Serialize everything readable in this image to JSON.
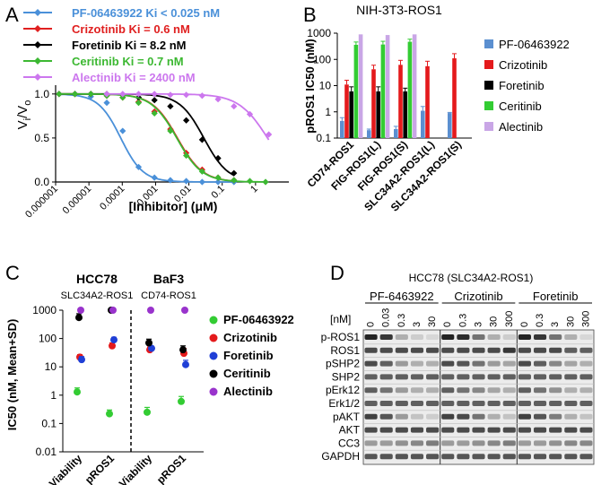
{
  "panels": {
    "A": "A",
    "B": "B",
    "C": "C",
    "D": "D"
  },
  "chart_data": [
    {
      "panel": "A",
      "type": "line",
      "xlabel_prefix": "[Inhibitor] (",
      "xlabel_mu": "μ",
      "xlabel_suffix": "M)",
      "ylabel_main": "V",
      "ylabel_sub_i": "i",
      "ylabel_slash": "/V",
      "ylabel_sub_o": "o",
      "x_scale": "log",
      "xlim": [
        1e-06,
        10
      ],
      "ylim": [
        0,
        1.1
      ],
      "x_ticks": [
        1e-06,
        1e-05,
        0.0001,
        0.001,
        0.01,
        0.1,
        1
      ],
      "x_tick_labels": [
        "0.000001",
        "0.00001",
        "0.0001",
        "0.001",
        "0.01",
        "0.1",
        "1"
      ],
      "y_ticks": [
        0,
        0.5,
        1.0
      ],
      "y_tick_labels": [
        "0.0",
        "0.5",
        "1.0"
      ],
      "legend_position": "top",
      "series": [
        {
          "name": "PF-06463922 Ki < 0.025 nM",
          "color": "#4a90d9",
          "marker": "diamond",
          "ic50": 9e-05,
          "hill": 1.3,
          "x": [
            1.27e-06,
            3.8e-06,
            1.14e-05,
            3.43e-05,
            0.000103,
            0.000309,
            0.000926,
            0.00278,
            0.00833,
            0.025,
            0.075,
            0.225
          ],
          "y": [
            1.0,
            1.0,
            0.97,
            0.9,
            0.58,
            0.17,
            0.05,
            0.02,
            0.01,
            0.0,
            0.0,
            0.0
          ]
        },
        {
          "name": "Crizotinib Ki = 0.6 nM",
          "color": "#e02020",
          "marker": "diamond",
          "ic50": 0.0045,
          "hill": 1.15,
          "x": [
            1.27e-06,
            3.8e-06,
            1.14e-05,
            3.43e-05,
            0.000103,
            0.000309,
            0.000926,
            0.00278,
            0.00833,
            0.025,
            0.075,
            0.225
          ],
          "y": [
            1.0,
            1.0,
            1.0,
            0.98,
            0.96,
            0.91,
            0.8,
            0.6,
            0.33,
            0.14,
            0.05,
            0.02
          ]
        },
        {
          "name": "Foretinib Ki = 8.2 nM",
          "color": "#000000",
          "marker": "diamond",
          "ic50": 0.028,
          "hill": 1.2,
          "x": [
            1.27e-06,
            3.8e-06,
            1.14e-05,
            3.43e-05,
            0.000103,
            0.000309,
            0.000926,
            0.00278,
            0.00833,
            0.025,
            0.075,
            0.225
          ],
          "y": [
            1.0,
            1.0,
            1.0,
            1.0,
            0.99,
            0.96,
            0.93,
            0.86,
            0.7,
            0.48,
            0.27,
            0.1
          ]
        },
        {
          "name": "Ceritinib Ki = 0.7 nM",
          "color": "#3cb832",
          "marker": "diamond",
          "ic50": 0.0043,
          "hill": 1.15,
          "x": [
            1.27e-06,
            3.8e-06,
            1.14e-05,
            3.43e-05,
            0.000103,
            0.000309,
            0.000926,
            0.00278,
            0.00833,
            0.025,
            0.075,
            0.225,
            0.675,
            2.0
          ],
          "y": [
            1.0,
            1.0,
            1.0,
            0.98,
            0.96,
            0.9,
            0.78,
            0.58,
            0.3,
            0.12,
            0.05,
            0.02,
            0.01,
            0.0
          ]
        },
        {
          "name": "Alectinib Ki = 2400 nM",
          "color": "#cc77ee",
          "marker": "diamond",
          "ic50": 2.3,
          "hill": 1.0,
          "x": [
            3.43e-05,
            0.000103,
            0.000309,
            0.000926,
            0.00278,
            0.00833,
            0.025,
            0.075,
            0.225,
            0.675,
            2.5
          ],
          "y": [
            1.0,
            1.0,
            1.0,
            1.0,
            0.99,
            0.99,
            0.98,
            0.94,
            0.86,
            0.77,
            0.54
          ]
        }
      ]
    },
    {
      "panel": "B",
      "type": "bar",
      "title": "NIH-3T3-ROS1",
      "ylabel": "pROS1 IC50 (nM)",
      "y_scale": "log",
      "ylim": [
        0.1,
        1000
      ],
      "y_ticks": [
        0.1,
        1,
        10,
        100,
        1000
      ],
      "y_tick_labels": [
        "0.1",
        "1",
        "10",
        "100",
        "1000"
      ],
      "categories": [
        "CD74-ROS1",
        "FIG-ROS1(L)",
        "FIG-ROS1(S)",
        "SLC34A2-ROS1(L)",
        "SLC34A2-ROS1(S)"
      ],
      "legend_position": "right",
      "series": [
        {
          "name": "PF-06463922",
          "color": "#5b8fd0",
          "values": [
            0.45,
            0.2,
            0.22,
            1.1,
            0.9
          ],
          "err": [
            0.15,
            0.02,
            0.06,
            0.5,
            0.05
          ]
        },
        {
          "name": "Crizotinib",
          "color": "#e41a1c",
          "values": [
            11,
            42,
            62,
            55,
            110
          ],
          "err": [
            5,
            18,
            30,
            30,
            55
          ]
        },
        {
          "name": "Foretinib",
          "color": "#000000",
          "values": [
            6,
            6,
            6,
            null,
            null
          ],
          "err": [
            3,
            3,
            2,
            null,
            null
          ]
        },
        {
          "name": "Ceritinib",
          "color": "#33cc33",
          "values": [
            360,
            370,
            470,
            null,
            null
          ],
          "err": [
            100,
            120,
            120,
            null,
            null
          ]
        },
        {
          "name": "Alectinib",
          "color": "#c9a6e6",
          "values": [
            900,
            850,
            900,
            null,
            null
          ],
          "err": [
            0,
            0,
            0,
            null,
            null
          ]
        }
      ]
    },
    {
      "panel": "C",
      "type": "scatter",
      "ylabel": "IC50 (nM, Mean+SD)",
      "y_scale": "log",
      "ylim": [
        0.01,
        1000
      ],
      "y_ticks": [
        0.01,
        0.1,
        1,
        10,
        100,
        1000
      ],
      "y_tick_labels": [
        "0.01",
        "0.1",
        "1",
        "10",
        "100",
        "1000"
      ],
      "groups": [
        {
          "title": "HCC78",
          "subtitle": "SLC34A2-ROS1"
        },
        {
          "title": "BaF3",
          "subtitle": "CD74-ROS1"
        }
      ],
      "categories": [
        "Viability",
        "pROS1",
        "Viability",
        "pROS1"
      ],
      "legend_position": "right",
      "series": [
        {
          "name": "PF-06463922",
          "color": "#33cc33",
          "values": [
            1.3,
            0.22,
            0.25,
            0.6
          ],
          "err": [
            0.5,
            0.08,
            0.12,
            0.3
          ]
        },
        {
          "name": "Crizotinib",
          "color": "#e41a1c",
          "values": [
            22,
            55,
            40,
            30
          ],
          "err": [
            5,
            15,
            10,
            15
          ]
        },
        {
          "name": "Foretinib",
          "color": "#1f3fd6",
          "values": [
            18,
            90,
            45,
            12
          ],
          "err": [
            5,
            20,
            8,
            5
          ]
        },
        {
          "name": "Ceritinib",
          "color": "#000000",
          "values": [
            550,
            1000,
            70,
            40
          ],
          "err": [
            200,
            0,
            25,
            15
          ]
        },
        {
          "name": "Alectinib",
          "color": "#9933cc",
          "values": [
            1000,
            1000,
            1000,
            1000
          ],
          "err": [
            0,
            0,
            0,
            0
          ]
        }
      ]
    }
  ],
  "western_blot": {
    "title": "HCC78 (SLC34A2-ROS1)",
    "nm_label": "[nM]",
    "drugs": [
      {
        "name": "PF-6463922",
        "doses": [
          "0",
          "0.03",
          "0.3",
          "3",
          "30"
        ]
      },
      {
        "name": "Crizotinib",
        "doses": [
          "0",
          "0.3",
          "3",
          "30",
          "300"
        ]
      },
      {
        "name": "Foretinib",
        "doses": [
          "0",
          "0.3",
          "3",
          "30",
          "300"
        ]
      }
    ],
    "bands": [
      "p-ROS1",
      "ROS1",
      "pSHP2",
      "SHP2",
      "pErk12",
      "Erk1/2",
      "pAKT",
      "AKT",
      "CC3",
      "GAPDH"
    ]
  }
}
